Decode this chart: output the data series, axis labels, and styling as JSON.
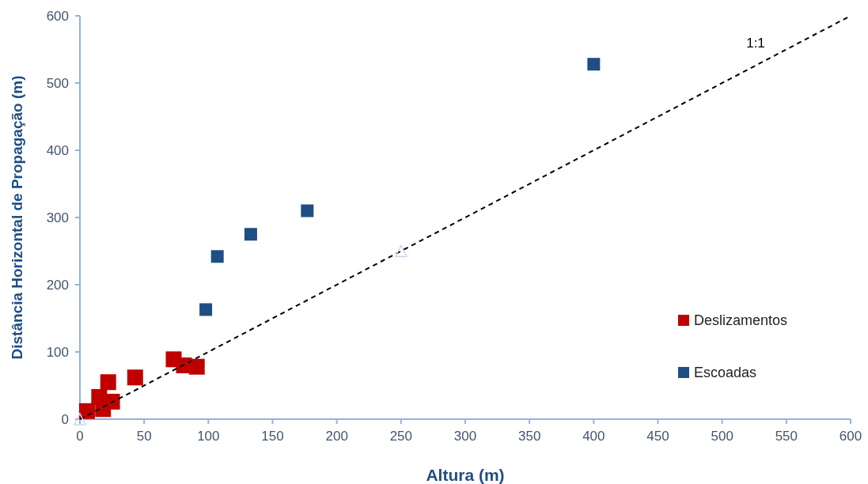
{
  "chart_data": {
    "type": "scatter",
    "xlabel": "Altura (m)",
    "ylabel": "Distância Horizontal de Propagação (m)",
    "xlim": [
      0,
      600
    ],
    "ylim": [
      0,
      600
    ],
    "xticks": [
      0,
      50,
      100,
      150,
      200,
      250,
      300,
      350,
      400,
      450,
      500,
      550,
      600
    ],
    "yticks": [
      0,
      100,
      200,
      300,
      400,
      500,
      600
    ],
    "grid": false,
    "legend": "right",
    "marker": "square",
    "annotations": [
      "1:1"
    ],
    "series": [
      {
        "name": "Deslizamentos",
        "color": "#c00000",
        "x": [
          5.5,
          15,
          18,
          22,
          25,
          43,
          73,
          81,
          91
        ],
        "values": [
          12,
          33,
          15,
          55,
          26,
          62,
          89,
          80,
          78
        ]
      },
      {
        "name": "Escoadas",
        "color": "#1f4e84",
        "x": [
          98,
          107,
          133,
          177,
          400
        ],
        "values": [
          163,
          242,
          275,
          310,
          528
        ]
      },
      {
        "type": "line",
        "color": "#000000",
        "line_style": "dashed",
        "marker": "none",
        "x": [
          0,
          600
        ],
        "values": [
          0,
          600
        ]
      },
      {
        "color": "#c6d9f1",
        "marker": "triangle",
        "x": [
          0,
          250
        ],
        "values": [
          0,
          250
        ]
      }
    ]
  }
}
